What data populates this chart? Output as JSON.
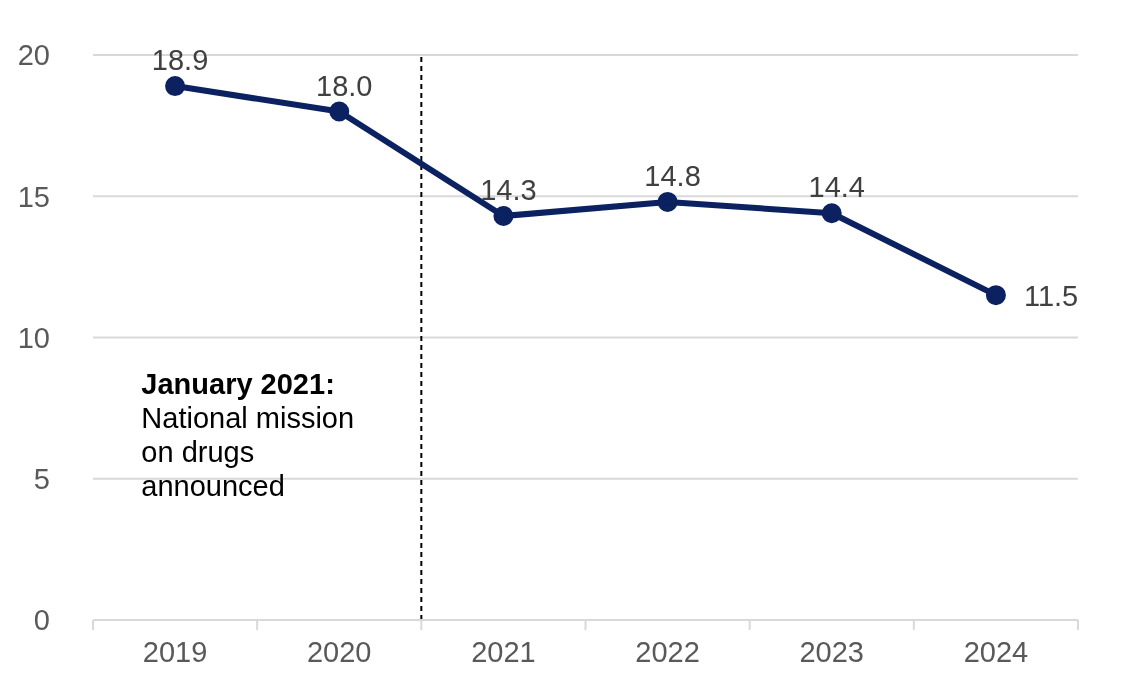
{
  "chart_data": {
    "type": "line",
    "x": [
      2019,
      2020,
      2021,
      2022,
      2023,
      2024
    ],
    "series": [
      {
        "color": "#0b2160",
        "values": [
          18.9,
          18.0,
          14.3,
          14.8,
          14.4,
          11.5
        ],
        "value_labels": [
          "18.9",
          "18.0",
          "14.3",
          "14.8",
          "14.4",
          "11.5"
        ]
      }
    ],
    "xlim": [
      2018.5,
      2024.5
    ],
    "xticks": [
      {
        "value": 2018.5,
        "label": null
      },
      2019,
      {
        "value": 2019.5,
        "label": null
      },
      2020,
      {
        "value": 2020.5,
        "label": null
      },
      2021,
      {
        "value": 2021.5,
        "label": null
      },
      2022,
      {
        "value": 2022.5,
        "label": null
      },
      2023,
      {
        "value": 2023.5,
        "label": null
      },
      2024,
      {
        "value": 2024.5,
        "label": null
      }
    ],
    "ylim": [
      0,
      20
    ],
    "yticks": [
      0,
      5,
      10,
      15,
      20
    ],
    "grid": "y",
    "marker": "circle",
    "line_style": "solid",
    "ref_lines": [
      {
        "axis": "x",
        "value": 2020.5,
        "label": "January 2021: National mission on drugs announced",
        "line_style": "dashed",
        "color": "#000000"
      }
    ]
  }
}
